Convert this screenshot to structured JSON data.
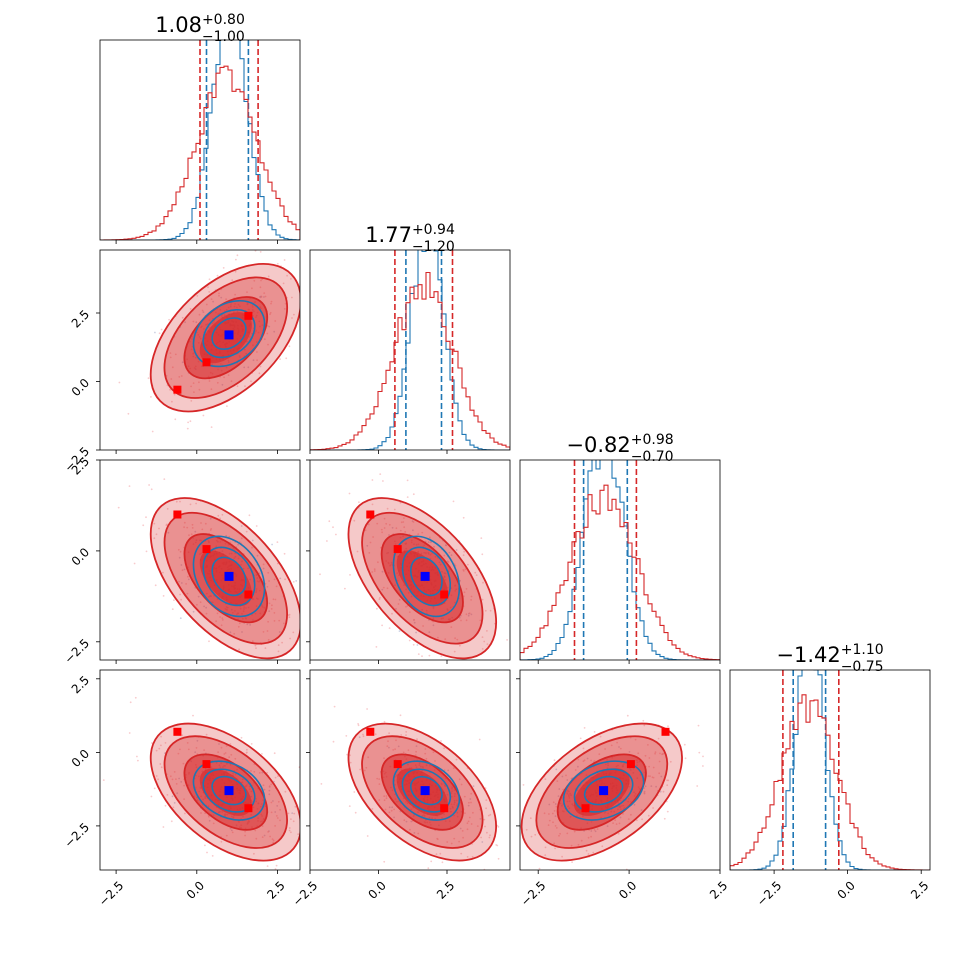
{
  "chart_data": {
    "type": "corner",
    "variables": 4,
    "tick_values": [
      -2.5,
      0.0,
      2.5
    ],
    "tick_labels": [
      "−2.5",
      "0.0",
      "2.5"
    ],
    "axis_ranges": [
      [
        -3.0,
        3.2
      ],
      [
        -2.5,
        4.8
      ],
      [
        -3.0,
        2.5
      ],
      [
        -4.0,
        2.8
      ]
    ],
    "colors": {
      "red": "#d62728",
      "blue": "#1f77b4",
      "blue_marker": "#0000ff",
      "red_marker": "#ff0000"
    },
    "titles": [
      {
        "value": "1.08",
        "plus": "+0.80",
        "minus": "−1.00"
      },
      {
        "value": "1.77",
        "plus": "+0.94",
        "minus": "−1.20"
      },
      {
        "value": "−0.82",
        "plus": "+0.98",
        "minus": "−0.70"
      },
      {
        "value": "−1.42",
        "plus": "+1.10",
        "minus": "−0.75"
      }
    ],
    "series": [
      {
        "name": "red",
        "means": [
          0.9,
          1.6,
          -0.75,
          -1.35
        ],
        "stds": [
          0.95,
          1.1,
          0.9,
          0.95
        ],
        "quantiles_16_84": [
          [
            0.1,
            1.9
          ],
          [
            0.6,
            2.7
          ],
          [
            -1.5,
            0.2
          ],
          [
            -2.2,
            -0.3
          ]
        ],
        "correlations": {
          "1-0": 0.5,
          "2-0": -0.55,
          "2-1": -0.55,
          "3-0": -0.5,
          "3-1": -0.5,
          "3-2": 0.5
        }
      },
      {
        "name": "blue",
        "means": [
          1.0,
          1.75,
          -0.7,
          -1.3
        ],
        "stds": [
          0.55,
          0.6,
          0.55,
          0.5
        ],
        "quantiles_16_84": [
          [
            0.3,
            1.6
          ],
          [
            1.0,
            2.3
          ],
          [
            -1.25,
            -0.05
          ],
          [
            -1.85,
            -0.75
          ]
        ],
        "correlations": {
          "1-0": 0.3,
          "2-0": -0.3,
          "2-1": -0.3,
          "3-0": -0.3,
          "3-1": -0.3,
          "3-2": 0.3
        }
      }
    ],
    "truth_point_blue": [
      1.0,
      1.7,
      -0.7,
      -1.3
    ],
    "red_markers": [
      [
        -0.6,
        -0.3,
        1.0,
        0.7
      ],
      [
        0.3,
        0.7,
        0.05,
        -0.4
      ],
      [
        1.6,
        2.4,
        -1.2,
        -1.9
      ]
    ]
  }
}
